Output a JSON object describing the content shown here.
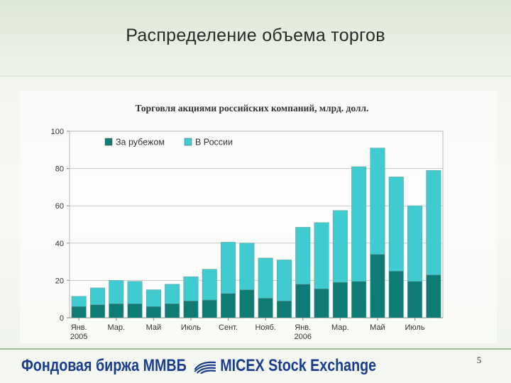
{
  "slide": {
    "title": "Распределение объема торгов",
    "page_number": "5"
  },
  "footer": {
    "brand_ru": "Фондовая биржа ММВБ",
    "brand_en": "MICEX Stock Exchange",
    "logo_icon": "micex-logo-icon"
  },
  "colors": {
    "abroad": "#0e7b75",
    "russia": "#3fcbcf",
    "title_text": "#2a2a2a",
    "brand": "#1a3c8c"
  },
  "chart_data": {
    "type": "bar",
    "stacked": true,
    "title": "Торговля акциями российских компаний, млрд. долл.",
    "xlabel": "",
    "ylabel": "",
    "ylim": [
      0,
      100
    ],
    "yticks": [
      "0",
      "20",
      "40",
      "60",
      "80",
      "100"
    ],
    "x_tick_labels": [
      {
        "index": 0,
        "lines": [
          "Янв.",
          "2005"
        ]
      },
      {
        "index": 2,
        "lines": [
          "Мар."
        ]
      },
      {
        "index": 4,
        "lines": [
          "Май"
        ]
      },
      {
        "index": 6,
        "lines": [
          "Июль"
        ]
      },
      {
        "index": 8,
        "lines": [
          "Сент."
        ]
      },
      {
        "index": 10,
        "lines": [
          "Нояб."
        ]
      },
      {
        "index": 12,
        "lines": [
          "Янв.",
          "2006"
        ]
      },
      {
        "index": 14,
        "lines": [
          "Мар."
        ]
      },
      {
        "index": 16,
        "lines": [
          "Май"
        ]
      },
      {
        "index": 18,
        "lines": [
          "Июль"
        ]
      }
    ],
    "legend": {
      "placement": "top-left"
    },
    "grid": true,
    "series": [
      {
        "name": "За рубежом",
        "values": [
          6,
          7,
          7.5,
          7.5,
          6,
          7.5,
          9,
          9.5,
          13,
          15,
          10.5,
          9,
          18,
          15.5,
          19,
          19.5,
          34,
          25,
          19.5,
          23
        ]
      },
      {
        "name": "В России",
        "values": [
          5.5,
          9,
          12.5,
          12,
          9,
          10.5,
          13,
          16.5,
          27.5,
          25,
          21.5,
          22,
          30.5,
          35.5,
          38.5,
          61.5,
          57,
          50.5,
          40.5,
          56
        ]
      }
    ]
  }
}
